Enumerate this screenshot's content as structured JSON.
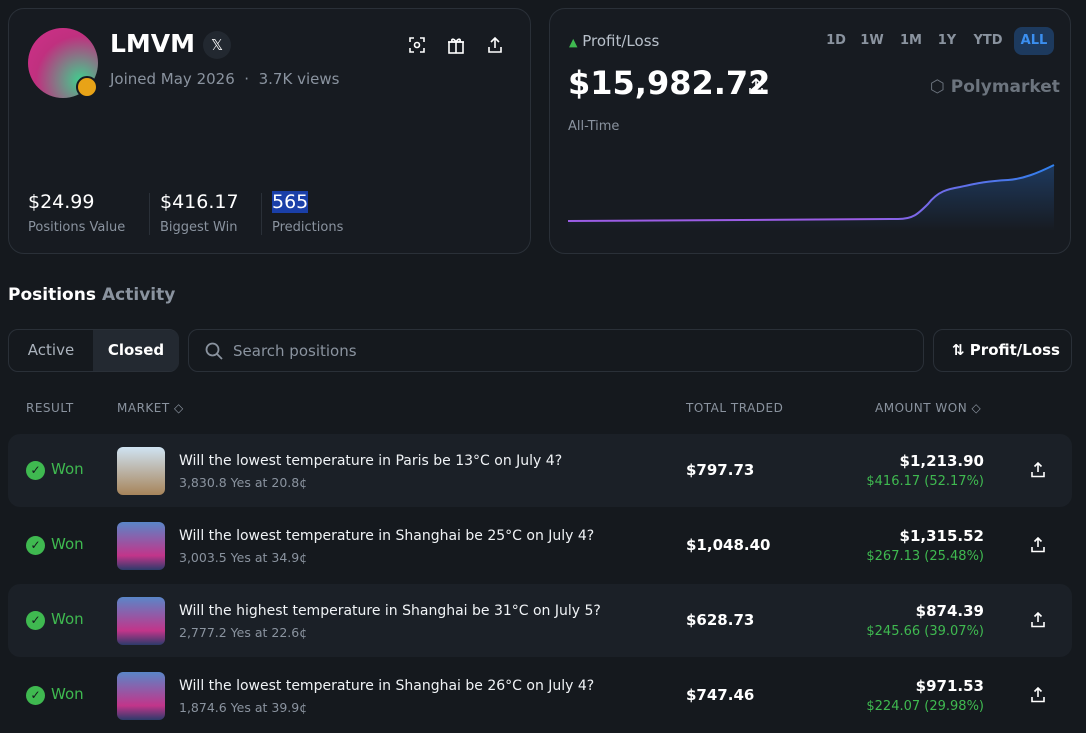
{
  "profile": {
    "name": "LMVM",
    "joined": "Joined May 2026",
    "separator": "·",
    "views": "3.7K views",
    "stats": [
      {
        "value": "$24.99",
        "label": "Positions Value"
      },
      {
        "value": "$416.17",
        "label": "Biggest Win"
      },
      {
        "value": "565",
        "label": "Predictions"
      }
    ]
  },
  "pnl": {
    "label": "Profit/Loss",
    "ranges": [
      "1D",
      "1W",
      "1M",
      "1Y",
      "YTD",
      "ALL"
    ],
    "active_range": 5,
    "value": "$15,982.72",
    "brand": "Polymarket",
    "period": "All-Time"
  },
  "tabs": [
    "Positions",
    "Activity"
  ],
  "filters": [
    "Active",
    "Closed"
  ],
  "active_filter": 1,
  "search_placeholder": "Search positions",
  "sort": "Profit/Loss",
  "table": {
    "headers": [
      "RESULT",
      "MARKET",
      "TOTAL TRADED",
      "AMOUNT WON"
    ],
    "rows": [
      {
        "result": "Won",
        "title": "Will the lowest temperature in Paris be 13°C on July 4?",
        "detail": "3,830.8 Yes at 20.8¢",
        "traded": "$797.73",
        "amount": "$1,213.90",
        "profit": "$416.17 (52.17%)"
      },
      {
        "result": "Won",
        "title": "Will the lowest temperature in Shanghai be 25°C on July 4?",
        "detail": "3,003.5 Yes at 34.9¢",
        "traded": "$1,048.40",
        "amount": "$1,315.52",
        "profit": "$267.13 (25.48%)"
      },
      {
        "result": "Won",
        "title": "Will the highest temperature in Shanghai be 31°C on July 5?",
        "detail": "2,777.2 Yes at 22.6¢",
        "traded": "$628.73",
        "amount": "$874.39",
        "profit": "$245.66 (39.07%)"
      },
      {
        "result": "Won",
        "title": "Will the lowest temperature in Shanghai be 26°C on July 4?",
        "detail": "1,874.6 Yes at 39.9¢",
        "traded": "$747.46",
        "amount": "$971.53",
        "profit": "$224.07 (29.98%)"
      }
    ]
  }
}
